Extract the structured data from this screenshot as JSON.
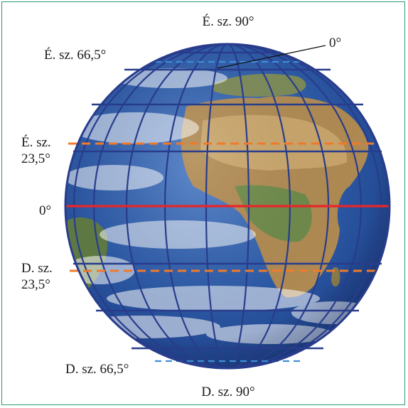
{
  "labels": {
    "north_pole": "É. sz. 90°",
    "north_arctic": "É. sz. 66,5°",
    "prime_meridian": "0°",
    "north_tropic_line1": "É. sz.",
    "north_tropic_line2": "23,5°",
    "equator": "0°",
    "south_tropic_line1": "D. sz.",
    "south_tropic_line2": "23,5°",
    "south_antarctic": "D. sz. 66,5°",
    "south_pole": "D. sz. 90°"
  },
  "colors": {
    "frame": "#2e9b6e",
    "grid": "#283c8c",
    "equator": "#e8262a",
    "tropics": "#f07a2a",
    "polar_circles": "#3f8fd8",
    "ocean": "#2f5aa8",
    "land": "#b08a52"
  }
}
